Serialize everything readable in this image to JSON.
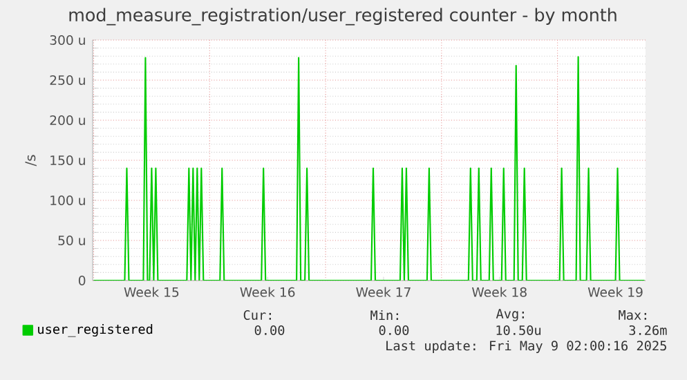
{
  "chart_data": {
    "type": "line",
    "title": "mod_measure_registration/user_registered counter - by month",
    "ylabel": "/s",
    "categories": [
      null,
      null,
      null,
      null,
      null,
      null,
      null,
      null,
      null,
      null,
      null,
      null,
      null,
      null,
      null,
      null,
      null,
      null,
      null,
      null,
      null,
      null,
      null,
      null,
      null,
      null,
      null,
      null,
      "Week 15",
      null,
      null,
      null,
      null,
      null,
      null,
      null,
      null,
      null,
      null,
      null,
      null,
      null,
      null,
      null,
      null,
      null,
      null,
      null,
      null,
      null,
      null,
      null,
      null,
      null,
      null,
      null,
      null,
      null,
      null,
      null,
      null,
      null,
      null,
      null,
      null,
      null,
      null,
      null,
      null,
      null,
      null,
      null,
      null,
      null,
      null,
      null,
      null,
      null,
      null,
      null,
      null,
      null,
      null,
      null,
      "Week 16",
      null,
      null,
      null,
      null,
      null,
      null,
      null,
      null,
      null,
      null,
      null,
      null,
      null,
      null,
      null,
      null,
      null,
      null,
      null,
      null,
      null,
      null,
      null,
      null,
      null,
      null,
      null,
      null,
      null,
      null,
      null,
      null,
      null,
      null,
      null,
      null,
      null,
      null,
      null,
      null,
      null,
      null,
      null,
      null,
      null,
      null,
      null,
      null,
      null,
      null,
      null,
      null,
      null,
      null,
      null,
      "Week 17",
      null,
      null,
      null,
      null,
      null,
      null,
      null,
      null,
      null,
      null,
      null,
      null,
      null,
      null,
      null,
      null,
      null,
      null,
      null,
      null,
      null,
      null,
      null,
      null,
      null,
      null,
      null,
      null,
      null,
      null,
      null,
      null,
      null,
      null,
      null,
      null,
      null,
      null,
      null,
      null,
      null,
      null,
      null,
      null,
      null,
      null,
      null,
      null,
      null,
      null,
      null,
      null,
      null,
      null,
      null,
      "Week 18",
      null,
      null,
      null,
      null,
      null,
      null,
      null,
      null,
      null,
      null,
      null,
      null,
      null,
      null,
      null,
      null,
      null,
      null,
      null,
      null,
      null,
      null,
      null,
      null,
      null,
      null,
      null,
      null,
      null,
      null,
      null,
      null,
      null,
      null,
      null,
      null,
      null,
      null,
      null,
      null,
      null,
      null,
      null,
      null,
      null,
      null,
      null,
      null,
      null,
      null,
      null,
      null,
      null,
      null,
      null,
      "Week 19",
      null,
      null,
      null,
      null,
      null,
      null,
      null,
      null,
      null,
      null,
      null,
      null,
      null,
      null
    ],
    "series": [
      {
        "name": "user_registered",
        "color": "#00cc00",
        "values": [
          0,
          0,
          0,
          0,
          0,
          0,
          0,
          0,
          0,
          0,
          0,
          0,
          0,
          0,
          0,
          0,
          140,
          0,
          0,
          0,
          0,
          0,
          0,
          0,
          0,
          278,
          0,
          0,
          140,
          0,
          140,
          0,
          0,
          0,
          0,
          0,
          0,
          0,
          0,
          0,
          0,
          0,
          0,
          0,
          0,
          0,
          140,
          0,
          140,
          0,
          140,
          0,
          140,
          0,
          0,
          0,
          0,
          0,
          0,
          0,
          0,
          0,
          140,
          0,
          0,
          0,
          0,
          0,
          0,
          0,
          0,
          0,
          0,
          0,
          0,
          0,
          0,
          0,
          0,
          0,
          0,
          0,
          140,
          0,
          0,
          0,
          0,
          0,
          0,
          0,
          0,
          0,
          0,
          0,
          0,
          0,
          0,
          0,
          0,
          278,
          0,
          0,
          0,
          140,
          0,
          0,
          0,
          0,
          0,
          0,
          0,
          0,
          0,
          0,
          0,
          0,
          0,
          0,
          0,
          0,
          0,
          0,
          0,
          0,
          0,
          0,
          0,
          0,
          0,
          0,
          0,
          0,
          0,
          0,
          0,
          140,
          0,
          0,
          0,
          0,
          0,
          0,
          0,
          0,
          0,
          0,
          0,
          0,
          0,
          140,
          0,
          140,
          0,
          0,
          0,
          0,
          0,
          0,
          0,
          0,
          0,
          0,
          140,
          0,
          0,
          0,
          0,
          0,
          0,
          0,
          0,
          0,
          0,
          0,
          0,
          0,
          0,
          0,
          0,
          0,
          0,
          0,
          140,
          0,
          0,
          0,
          140,
          0,
          0,
          0,
          0,
          0,
          140,
          0,
          0,
          0,
          0,
          0,
          140,
          0,
          0,
          0,
          0,
          0,
          268,
          0,
          0,
          0,
          140,
          0,
          0,
          0,
          0,
          0,
          0,
          0,
          0,
          0,
          0,
          0,
          0,
          0,
          0,
          0,
          0,
          0,
          140,
          0,
          0,
          0,
          0,
          0,
          0,
          0,
          279,
          0,
          0,
          0,
          0,
          140,
          0,
          0,
          0,
          0,
          0,
          0,
          0,
          0,
          0,
          0,
          0,
          0,
          0,
          140,
          0,
          0,
          0,
          0,
          0,
          0,
          0,
          0,
          0,
          0,
          0,
          0,
          0
        ]
      }
    ],
    "ylim": [
      0,
      300
    ],
    "yticks": [
      {
        "value": 0,
        "label": "0"
      },
      {
        "value": 50,
        "label": "50 u"
      },
      {
        "value": 100,
        "label": "100 u"
      },
      {
        "value": 150,
        "label": "150 u"
      },
      {
        "value": 200,
        "label": "200 u"
      },
      {
        "value": 250,
        "label": "250 u"
      },
      {
        "value": 300,
        "label": "300 u"
      }
    ],
    "grid": true,
    "legend": "bottom",
    "marker": "none",
    "line_style": "solid",
    "annotations": [
      "Cur:",
      "Min:",
      "Avg:",
      "Max:",
      "0.00",
      "0.00",
      "10.50u",
      "3.26m",
      "Last update: Fri May  9 02:00:16 2025"
    ]
  }
}
